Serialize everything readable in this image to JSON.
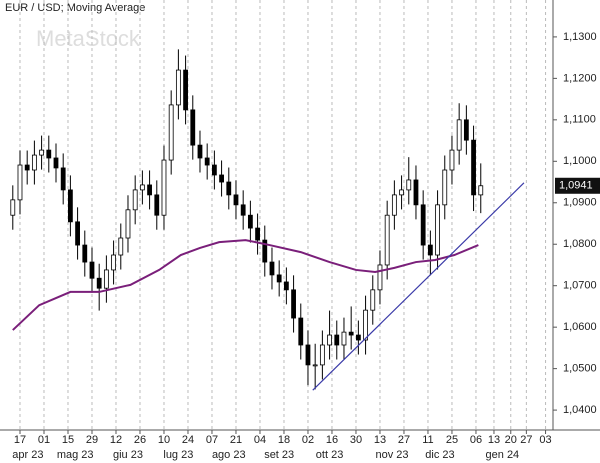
{
  "chart_data": {
    "type": "candlestick",
    "title": "EUR / USD; Moving Average",
    "watermark": "MetaStock",
    "x": [
      -3,
      0,
      3,
      6,
      9,
      12,
      15,
      18,
      21,
      24,
      27,
      30,
      33,
      36,
      39,
      42,
      45,
      48,
      51,
      54,
      57,
      60,
      63,
      66,
      69,
      72,
      75,
      78,
      81,
      84,
      87,
      90,
      93,
      96,
      99,
      102,
      105,
      108,
      111,
      114,
      117,
      120,
      123,
      126,
      129,
      132,
      135,
      138,
      141,
      144,
      147,
      150,
      153,
      156,
      159,
      162,
      165,
      168,
      171,
      174,
      177,
      180,
      183,
      186,
      189,
      192
    ],
    "open": [
      1.087,
      1.0907,
      1.0991,
      1.0979,
      1.1015,
      1.1027,
      1.1008,
      1.0984,
      1.0931,
      1.0854,
      1.0798,
      1.0757,
      1.0718,
      1.0694,
      1.0738,
      1.0774,
      1.0815,
      1.0883,
      1.0931,
      1.0943,
      1.0919,
      1.087,
      1.1003,
      1.1136,
      1.122,
      1.1124,
      1.1039,
      1.1008,
      1.0991,
      1.0967,
      1.095,
      1.0919,
      1.0895,
      1.087,
      1.0839,
      1.081,
      1.0757,
      1.0726,
      1.0709,
      1.069,
      1.0622,
      1.0557,
      1.0509,
      1.0509,
      1.0557,
      1.0581,
      1.0557,
      1.0588,
      1.0581,
      1.0569,
      1.0641,
      1.069,
      1.075,
      1.087,
      1.0919,
      1.0931,
      1.0955,
      1.0895,
      1.0798,
      1.0774,
      1.0895,
      1.0979,
      1.1027,
      1.11,
      1.1051,
      1.0919
    ],
    "high": [
      1.0942,
      1.1026,
      1.1026,
      1.105,
      1.1062,
      1.1062,
      1.1043,
      1.1019,
      1.0966,
      1.0889,
      1.0833,
      1.0792,
      1.0753,
      1.0773,
      1.0809,
      1.085,
      1.0918,
      1.0966,
      1.0978,
      1.0978,
      1.0954,
      1.1038,
      1.1171,
      1.127,
      1.1255,
      1.1159,
      1.1074,
      1.1043,
      1.1026,
      1.1002,
      1.0985,
      1.0954,
      1.093,
      1.0905,
      1.0874,
      1.0845,
      1.0792,
      1.0761,
      1.0744,
      1.0725,
      1.0657,
      1.0592,
      1.056,
      1.0592,
      1.064,
      1.0616,
      1.0623,
      1.065,
      1.0616,
      1.0676,
      1.0725,
      1.0785,
      1.0905,
      1.0954,
      1.0966,
      1.101,
      1.099,
      1.093,
      1.0833,
      1.093,
      1.1014,
      1.1062,
      1.114,
      1.1135,
      1.1086,
      1.0995
    ],
    "low": [
      1.0835,
      1.0872,
      1.0944,
      1.0944,
      1.098,
      1.0973,
      1.0949,
      1.0896,
      1.0819,
      1.0763,
      1.0722,
      1.0683,
      1.064,
      1.0659,
      1.0703,
      1.0739,
      1.078,
      1.0848,
      1.0896,
      1.0884,
      1.0835,
      1.0835,
      1.0968,
      1.1101,
      1.1089,
      1.1004,
      1.0973,
      1.0956,
      1.0932,
      1.0915,
      1.0884,
      1.086,
      1.0835,
      1.0804,
      1.0775,
      1.0722,
      1.0691,
      1.0674,
      1.0655,
      1.0587,
      1.0522,
      1.046,
      1.045,
      1.0474,
      1.0522,
      1.0522,
      1.0522,
      1.0546,
      1.0534,
      1.0534,
      1.0606,
      1.0655,
      1.0715,
      1.0835,
      1.0884,
      1.0896,
      1.086,
      1.0763,
      1.0725,
      1.0739,
      1.086,
      1.0944,
      1.0992,
      1.1016,
      1.088,
      1.0875
    ],
    "close": [
      1.0907,
      1.0991,
      1.0979,
      1.1015,
      1.1027,
      1.1008,
      1.0984,
      1.0931,
      1.0854,
      1.0798,
      1.0757,
      1.0718,
      1.0694,
      1.0738,
      1.0774,
      1.0815,
      1.0883,
      1.0931,
      1.0943,
      1.0919,
      1.087,
      1.1003,
      1.1136,
      1.122,
      1.1124,
      1.1039,
      1.1008,
      1.0991,
      1.0967,
      1.095,
      1.0919,
      1.0895,
      1.087,
      1.0839,
      1.081,
      1.0757,
      1.0726,
      1.0709,
      1.069,
      1.0622,
      1.0557,
      1.0509,
      1.0509,
      1.0557,
      1.0581,
      1.0557,
      1.0588,
      1.0581,
      1.0569,
      1.0641,
      1.069,
      1.075,
      1.087,
      1.0919,
      1.0931,
      1.0955,
      1.0895,
      1.0798,
      1.0774,
      1.0895,
      1.0979,
      1.1027,
      1.11,
      1.1051,
      1.0919,
      1.0941
    ],
    "lines": [
      {
        "color": "#7a1f7a",
        "x": [
          -3,
          8,
          21,
          33,
          46,
          58,
          67,
          75,
          83,
          94,
          104,
          117,
          129,
          140,
          148,
          156,
          165,
          173,
          181,
          191
        ],
        "values": [
          1.0593,
          1.0653,
          1.0685,
          1.0685,
          1.0702,
          1.0738,
          1.0774,
          1.0791,
          1.0805,
          1.081,
          1.0798,
          1.0781,
          1.0757,
          1.0738,
          1.0733,
          1.0743,
          1.0757,
          1.0762,
          1.0774,
          1.0798
        ]
      },
      {
        "color": "#3a3aa8",
        "x": [
          122,
          210
        ],
        "values": [
          1.0448,
          1.0948
        ]
      }
    ],
    "last_label": {
      "value": 1.0941,
      "label": "1,0941"
    },
    "xlim": [
      -8.33,
      222.1
    ],
    "ylim": [
      1.0352,
      1.1389
    ],
    "xticks": [
      {
        "value": 0,
        "label": "17"
      },
      {
        "value": 10,
        "label": "01"
      },
      {
        "value": 20,
        "label": "15"
      },
      {
        "value": 30,
        "label": "29"
      },
      {
        "value": 40,
        "label": "12"
      },
      {
        "value": 50,
        "label": "26"
      },
      {
        "value": 60,
        "label": "10"
      },
      {
        "value": 70,
        "label": "24"
      },
      {
        "value": 80,
        "label": "07"
      },
      {
        "value": 90,
        "label": "21"
      },
      {
        "value": 100,
        "label": "04"
      },
      {
        "value": 110,
        "label": "18"
      },
      {
        "value": 120,
        "label": "02"
      },
      {
        "value": 130,
        "label": "16"
      },
      {
        "value": 140,
        "label": "30"
      },
      {
        "value": 150,
        "label": "13"
      },
      {
        "value": 160,
        "label": "27"
      },
      {
        "value": 170,
        "label": "11"
      },
      {
        "value": 180,
        "label": "25"
      },
      {
        "value": 190,
        "label": "06"
      },
      {
        "value": 197.5,
        "label": "13"
      },
      {
        "value": 204.5,
        "label": "20"
      },
      {
        "value": 211,
        "label": "27"
      },
      {
        "value": 219,
        "label": "03"
      }
    ],
    "month_labels": [
      {
        "value": 3.3,
        "label": "apr 23"
      },
      {
        "value": 23,
        "label": "mag 23"
      },
      {
        "value": 45,
        "label": "giu 23"
      },
      {
        "value": 66,
        "label": "lug 23"
      },
      {
        "value": 87,
        "label": "ago 23"
      },
      {
        "value": 108,
        "label": "set 23"
      },
      {
        "value": 129,
        "label": "ott 23"
      },
      {
        "value": 155,
        "label": "nov 23"
      },
      {
        "value": 175,
        "label": "dic 23"
      },
      {
        "value": 201,
        "label": "gen 24"
      }
    ],
    "yticks": [
      {
        "value": 1.13,
        "label": "1,1300"
      },
      {
        "value": 1.12,
        "label": "1,1200"
      },
      {
        "value": 1.11,
        "label": "1,1100"
      },
      {
        "value": 1.1,
        "label": "1,1000"
      },
      {
        "value": 1.09,
        "label": "1,0900"
      },
      {
        "value": 1.08,
        "label": "1,0800"
      },
      {
        "value": 1.07,
        "label": "1,0700"
      },
      {
        "value": 1.06,
        "label": "1,0600"
      },
      {
        "value": 1.05,
        "label": "1,0500"
      },
      {
        "value": 1.04,
        "label": "1,0400"
      }
    ],
    "grid": true
  }
}
